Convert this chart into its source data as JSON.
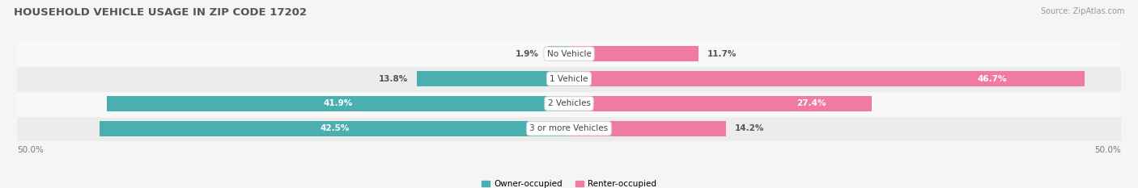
{
  "title": "HOUSEHOLD VEHICLE USAGE IN ZIP CODE 17202",
  "source": "Source: ZipAtlas.com",
  "categories": [
    "No Vehicle",
    "1 Vehicle",
    "2 Vehicles",
    "3 or more Vehicles"
  ],
  "owner_values": [
    1.9,
    13.8,
    41.9,
    42.5
  ],
  "renter_values": [
    11.7,
    46.7,
    27.4,
    14.2
  ],
  "owner_color": "#4BAFB0",
  "renter_color": "#F07BA0",
  "owner_label": "Owner-occupied",
  "renter_label": "Renter-occupied",
  "axis_max": 50.0,
  "axis_label_left": "50.0%",
  "axis_label_right": "50.0%",
  "bg_color": "#f5f5f5",
  "title_color": "#555555",
  "source_color": "#999999",
  "bar_height": 0.62,
  "row_bg_light": "#f8f8f8",
  "row_bg_dark": "#ececec",
  "pill_bg": "#e8e8e8"
}
